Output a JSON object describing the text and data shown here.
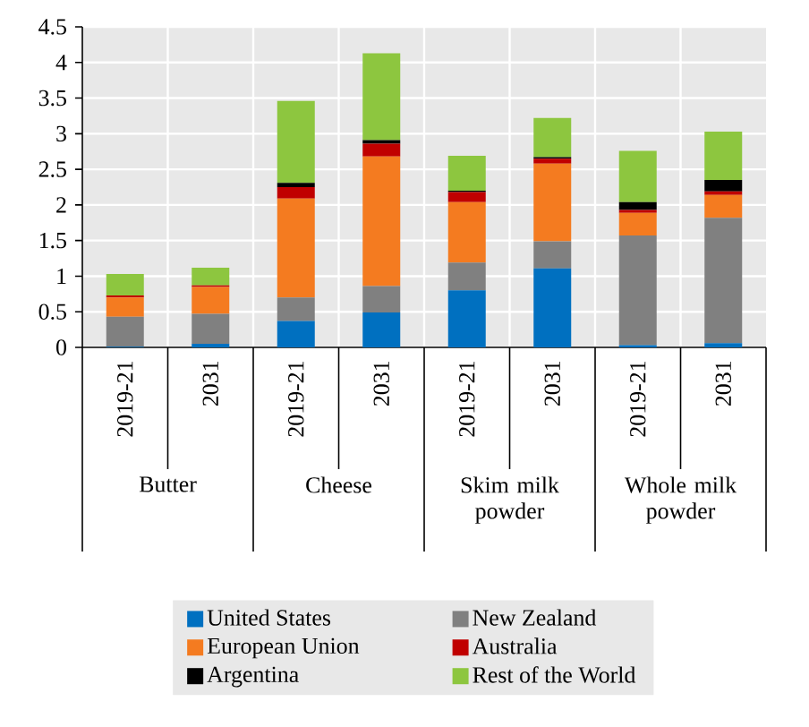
{
  "chart_data": {
    "type": "bar",
    "stacked": true,
    "categories": [
      "2019-21",
      "2031",
      "2019-21",
      "2031",
      "2019-21",
      "2031",
      "2019-21",
      "2031"
    ],
    "annotations": [
      "Butter",
      "Cheese",
      "Skim milk powder",
      "Whole milk powder"
    ],
    "series": [
      {
        "name": "United States",
        "color": "#0070c0",
        "values": [
          0.01,
          0.05,
          0.37,
          0.49,
          0.8,
          1.11,
          0.03,
          0.06
        ]
      },
      {
        "name": "New Zealand",
        "color": "#808080",
        "values": [
          0.42,
          0.42,
          0.33,
          0.37,
          0.39,
          0.38,
          1.54,
          1.76
        ]
      },
      {
        "name": "European Union",
        "color": "#f47b20",
        "values": [
          0.27,
          0.38,
          1.39,
          1.82,
          0.85,
          1.09,
          0.32,
          0.32
        ]
      },
      {
        "name": "Australia",
        "color": "#c00000",
        "values": [
          0.03,
          0.02,
          0.16,
          0.18,
          0.14,
          0.07,
          0.04,
          0.05
        ]
      },
      {
        "name": "Argentina",
        "color": "#000000",
        "values": [
          0,
          0,
          0.06,
          0.05,
          0.02,
          0.02,
          0.11,
          0.16
        ]
      },
      {
        "name": "Rest of the World",
        "color": "#8dc63f",
        "values": [
          0.3,
          0.25,
          1.15,
          1.22,
          0.49,
          0.55,
          0.72,
          0.68
        ]
      }
    ],
    "ylim": [
      0,
      4.5
    ],
    "yticks": [
      0,
      0.5,
      1,
      1.5,
      2,
      2.5,
      3,
      3.5,
      4,
      4.5
    ],
    "grid": true,
    "legend": "bottom"
  }
}
